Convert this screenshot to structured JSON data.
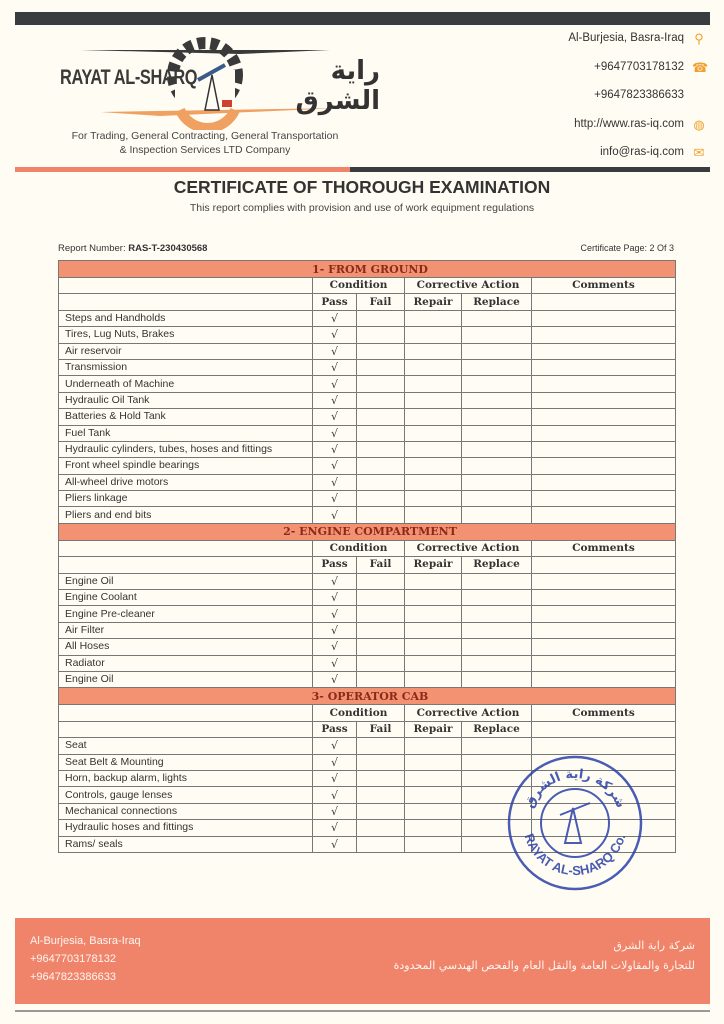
{
  "header": {
    "logo_en": "RAYAT AL-SHARQ",
    "logo_ar": "راية الشرق",
    "tagline_1": "For Trading, General Contracting, General Transportation",
    "tagline_2": "& Inspection Services LTD Company",
    "contacts": [
      {
        "text": "Al-Burjesia, Basra-Iraq",
        "icon": "location-pin-icon"
      },
      {
        "text": "+9647703178132",
        "icon": "phone-icon"
      },
      {
        "text": "+9647823386633",
        "icon": ""
      },
      {
        "text": "http://www.ras-iq.com",
        "icon": "globe-icon"
      },
      {
        "text": "info@ras-iq.com",
        "icon": "envelope-icon"
      }
    ]
  },
  "title": "CERTIFICATE OF THOROUGH EXAMINATION",
  "subtitle": "This report complies with provision and use of work equipment regulations",
  "report_number_label": "Report Number:",
  "report_number": "RAS-T-230430568",
  "certificate_page": "Certificate Page: 2 Of 3",
  "columns": {
    "condition": "Condition",
    "corrective": "Corrective Action",
    "comments": "Comments",
    "pass": "Pass",
    "fail": "Fail",
    "repair": "Repair",
    "replace": "Replace"
  },
  "check_mark": "√",
  "sections": [
    {
      "title": "1-  FROM GROUND",
      "items": [
        "Steps and Handholds",
        "Tires, Lug Nuts, Brakes",
        "Air reservoir",
        "Transmission",
        "Underneath of Machine",
        "Hydraulic Oil Tank",
        "Batteries & Hold Tank",
        "Fuel Tank",
        "Hydraulic cylinders, tubes, hoses and fittings",
        "Front wheel spindle bearings",
        "All-wheel drive motors",
        "Pliers linkage",
        "Pliers and end bits"
      ]
    },
    {
      "title": "2-  ENGINE COMPARTMENT",
      "items": [
        "Engine Oil",
        "Engine Coolant",
        "Engine Pre-cleaner",
        "Air Filter",
        "All Hoses",
        "Radiator",
        "Engine Oil"
      ]
    },
    {
      "title": "3-  OPERATOR CAB",
      "items": [
        "Seat",
        "Seat Belt & Mounting",
        "Horn, backup alarm, lights",
        "Controls, gauge lenses",
        "Mechanical connections",
        "Hydraulic hoses and fittings",
        "Rams/ seals"
      ]
    }
  ],
  "stamp": {
    "text_en": "RAYAT AL-SHARQ Co.",
    "text_ar": "شركة راية الشرق",
    "color": "#2a3fa8"
  },
  "footer": {
    "address": "Al-Burjesia, Basra-Iraq",
    "phone_1": "+9647703178132",
    "phone_2": "+9647823386633",
    "ar_line_1": "شركة راية الشرق",
    "ar_line_2": "للتجارة والمقاولات العامة والنقل العام والفحص الهندسي المحدودة"
  },
  "colors": {
    "accent": "#f0846b",
    "dark": "#3a3d40",
    "section_text": "#8a2a18"
  }
}
